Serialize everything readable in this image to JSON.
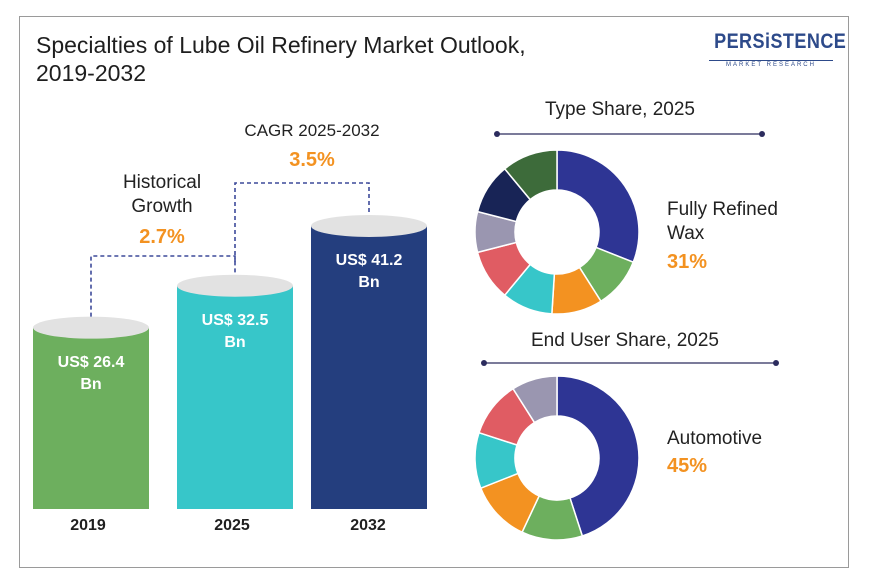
{
  "title": {
    "line1": "Specialties of Lube Oil Refinery Market Outlook,",
    "line2": "2019-2032"
  },
  "logo": {
    "name": "PERSiSTENCE",
    "tagline": "MARKET RESEARCH"
  },
  "colors": {
    "bar_2019": "#6daf5e",
    "bar_2025": "#37c6c9",
    "bar_2032": "#243e7e",
    "accent": "#f39221",
    "dash": "#3d4a9a"
  },
  "growth": {
    "historical": {
      "label_line1": "Historical",
      "label_line2": "Growth",
      "value": "2.7%"
    },
    "forecast": {
      "label": "CAGR 2025-2032",
      "value": "3.5%"
    }
  },
  "chart_data": [
    {
      "type": "bar",
      "categories": [
        "2019",
        "2025",
        "2032"
      ],
      "values": [
        26.4,
        32.5,
        41.2
      ],
      "value_labels": [
        [
          "US$ 26.4",
          "Bn"
        ],
        [
          "US$ 32.5",
          "Bn"
        ],
        [
          "US$ 41.2",
          "Bn"
        ]
      ],
      "unit": "US$ Bn",
      "ylim": [
        0,
        45
      ]
    },
    {
      "type": "pie",
      "title": "Type Share, 2025",
      "highlight_label": [
        "Fully Refined",
        "Wax"
      ],
      "highlight_value": "31%",
      "values": [
        31,
        10,
        10,
        10,
        10,
        8,
        10,
        11
      ],
      "colors": [
        "#2e3594",
        "#6daf5e",
        "#f39221",
        "#37c6c9",
        "#e05c63",
        "#9a96b0",
        "#182456",
        "#3d6b3a"
      ]
    },
    {
      "type": "pie",
      "title": "End User Share, 2025",
      "highlight_label": [
        "Automotive"
      ],
      "highlight_value": "45%",
      "values": [
        45,
        12,
        12,
        11,
        11,
        9
      ],
      "colors": [
        "#2e3594",
        "#6daf5e",
        "#f39221",
        "#37c6c9",
        "#e05c63",
        "#9a96b0"
      ]
    }
  ]
}
